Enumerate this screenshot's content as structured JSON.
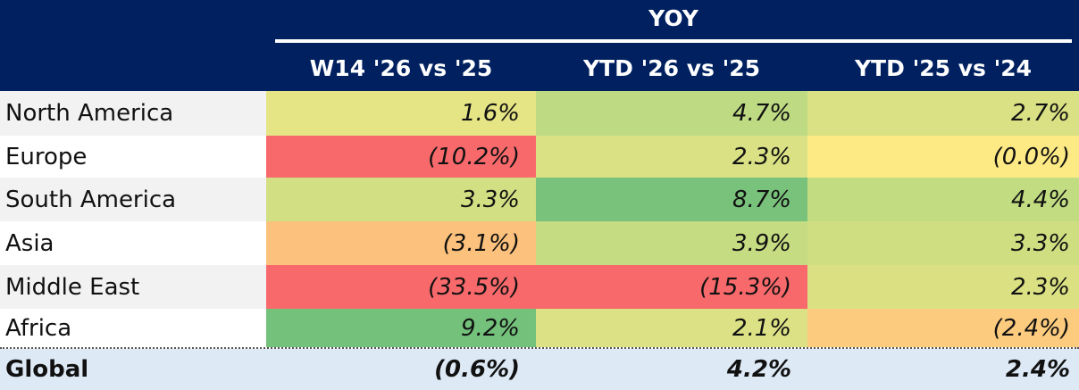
{
  "header": {
    "group_label": "YOY",
    "columns": [
      "W14 '26 vs '25",
      "YTD '26 vs '25",
      "YTD '25 vs '24"
    ]
  },
  "rows": [
    {
      "region": "North America",
      "values": [
        "1.6%",
        "4.7%",
        "2.7%"
      ],
      "colors": [
        "#e5e586",
        "#bedb84",
        "#d9e184"
      ]
    },
    {
      "region": "Europe",
      "values": [
        "(10.2%)",
        "2.3%",
        "(0.0%)"
      ],
      "colors": [
        "#f8696b",
        "#d9e184",
        "#fdea84"
      ]
    },
    {
      "region": "South America",
      "values": [
        "3.3%",
        "8.7%",
        "4.4%"
      ],
      "colors": [
        "#d2df83",
        "#79c27c",
        "#c2dc82"
      ]
    },
    {
      "region": "Asia",
      "values": [
        "(3.1%)",
        "3.9%",
        "3.3%"
      ],
      "colors": [
        "#fcc17c",
        "#c6dc82",
        "#d0de82"
      ]
    },
    {
      "region": "Middle East",
      "values": [
        "(33.5%)",
        "(15.3%)",
        "2.3%"
      ],
      "colors": [
        "#f8696b",
        "#f8696b",
        "#dbe183"
      ]
    },
    {
      "region": "Africa",
      "values": [
        "9.2%",
        "2.1%",
        "(2.4%)"
      ],
      "colors": [
        "#73c17b",
        "#dbe184",
        "#fccb7e"
      ]
    }
  ],
  "global": {
    "region": "Global",
    "values": [
      "(0.6%)",
      "4.2%",
      "2.4%"
    ]
  }
}
